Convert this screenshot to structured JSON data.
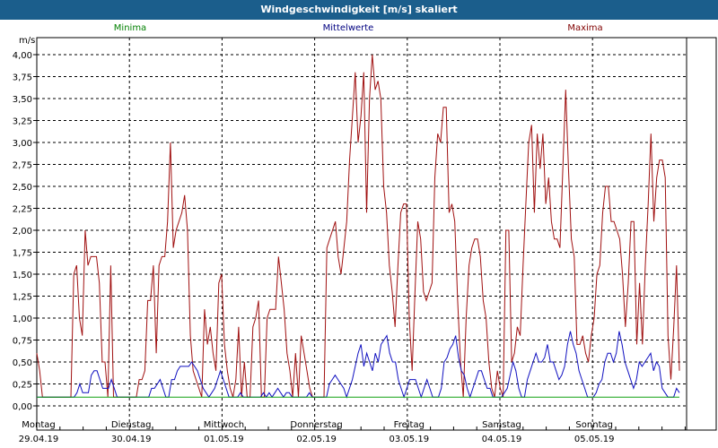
{
  "window": {
    "title": "Windgeschwindigkeit [m/s] skaliert"
  },
  "chart_data": {
    "type": "line",
    "unit_label": "m/s",
    "ylim": [
      0,
      4
    ],
    "y_ticks": [
      "0,00",
      "0,25",
      "0,50",
      "0,75",
      "1,00",
      "1,25",
      "1,50",
      "1,75",
      "2,00",
      "2,25",
      "2,50",
      "2,75",
      "3,00",
      "3,25",
      "3,50",
      "3,75",
      "4,00"
    ],
    "x_range": [
      "29.04.19 00:00",
      "05.05.19 24:00"
    ],
    "x_labels": [
      {
        "day": "Montag",
        "date": "29.04.19"
      },
      {
        "day": "Dienstag",
        "date": "30.04.19"
      },
      {
        "day": "Mittwoch",
        "date": "01.05.19"
      },
      {
        "day": "Donnerstag",
        "date": "02.05.19"
      },
      {
        "day": "Freitag",
        "date": "03.05.19"
      },
      {
        "day": "Samstag",
        "date": "04.05.19"
      },
      {
        "day": "Sonntag",
        "date": "05.05.19"
      }
    ],
    "grid": true,
    "legend": [
      {
        "name": "Minima",
        "color": "#008000"
      },
      {
        "name": "Mittelwerte",
        "color": "#000080"
      },
      {
        "name": "Maxima",
        "color": "#800000"
      }
    ],
    "series": [
      {
        "name": "Maxima",
        "color": "#a01010",
        "values": [
          0.6,
          0.4,
          0.1,
          0.1,
          0.1,
          0.1,
          0.1,
          0.1,
          0.1,
          0.1,
          0.1,
          0.1,
          0.1,
          1.5,
          1.6,
          1.0,
          0.8,
          2.0,
          1.6,
          1.7,
          1.7,
          1.7,
          1.4,
          0.5,
          0.5,
          0.1,
          1.6,
          0.1,
          0.1,
          0.1,
          0.1,
          0.1,
          0.1,
          0.1,
          0.1,
          0.1,
          0.3,
          0.3,
          0.4,
          1.2,
          1.2,
          1.6,
          0.6,
          1.6,
          1.7,
          1.7,
          2.1,
          3.0,
          1.8,
          2.0,
          2.1,
          2.2,
          2.4,
          2.0,
          0.8,
          0.4,
          0.3,
          0.2,
          0.1,
          1.1,
          0.7,
          0.9,
          0.6,
          0.4,
          1.4,
          1.5,
          0.7,
          0.4,
          0.2,
          0.1,
          0.3,
          0.9,
          0.1,
          0.5,
          0.1,
          0.1,
          0.9,
          1.0,
          1.2,
          0.1,
          0.1,
          1.0,
          1.1,
          1.1,
          1.1,
          1.7,
          1.4,
          1.1,
          0.6,
          0.4,
          0.1,
          0.6,
          0.1,
          0.8,
          0.6,
          0.4,
          0.2,
          0.1,
          0.1,
          0.1,
          0.1,
          0.1,
          1.8,
          1.9,
          2.0,
          2.1,
          1.7,
          1.5,
          1.8,
          2.1,
          2.8,
          3.3,
          3.8,
          3.0,
          3.3,
          3.8,
          2.2,
          3.5,
          4.0,
          3.6,
          3.7,
          3.5,
          2.5,
          2.2,
          1.6,
          1.3,
          0.9,
          1.6,
          2.2,
          2.3,
          2.3,
          1.0,
          0.4,
          1.3,
          2.1,
          1.9,
          1.3,
          1.2,
          1.3,
          1.4,
          2.6,
          3.1,
          3.0,
          3.4,
          3.4,
          2.2,
          2.3,
          2.1,
          1.2,
          0.5,
          0.1,
          1.0,
          1.6,
          1.8,
          1.9,
          1.9,
          1.7,
          1.2,
          1.0,
          0.5,
          0.2,
          0.1,
          0.4,
          0.2,
          0.1,
          2.0,
          2.0,
          0.5,
          0.6,
          0.9,
          0.8,
          1.6,
          2.3,
          3.0,
          3.2,
          2.2,
          3.1,
          2.7,
          3.1,
          2.3,
          2.6,
          2.1,
          1.9,
          1.9,
          1.8,
          2.7,
          3.6,
          2.7,
          1.9,
          1.7,
          0.7,
          0.7,
          0.8,
          0.6,
          0.5,
          0.8,
          1.0,
          1.5,
          1.6,
          2.2,
          2.5,
          2.5,
          2.1,
          2.1,
          2.0,
          1.9,
          1.5,
          0.9,
          1.4,
          2.1,
          2.1,
          0.7,
          1.4,
          0.7,
          1.6,
          2.3,
          3.1,
          2.1,
          2.6,
          2.8,
          2.8,
          2.6,
          0.8,
          0.3,
          0.9,
          1.6,
          0.4
        ]
      },
      {
        "name": "Mittelwerte",
        "color": "#1010c0",
        "values": [
          0.1,
          0.1,
          0.1,
          0.1,
          0.1,
          0.1,
          0.1,
          0.1,
          0.1,
          0.1,
          0.1,
          0.1,
          0.1,
          0.1,
          0.15,
          0.25,
          0.15,
          0.15,
          0.15,
          0.35,
          0.4,
          0.4,
          0.3,
          0.2,
          0.2,
          0.2,
          0.3,
          0.2,
          0.1,
          0.1,
          0.1,
          0.1,
          0.1,
          0.1,
          0.1,
          0.1,
          0.1,
          0.1,
          0.1,
          0.1,
          0.2,
          0.2,
          0.25,
          0.3,
          0.2,
          0.1,
          0.1,
          0.3,
          0.3,
          0.4,
          0.45,
          0.45,
          0.45,
          0.45,
          0.5,
          0.45,
          0.4,
          0.3,
          0.2,
          0.15,
          0.1,
          0.15,
          0.2,
          0.3,
          0.4,
          0.3,
          0.2,
          0.1,
          0.1,
          0.1,
          0.1,
          0.15,
          0.1,
          0.1,
          0.1,
          0.1,
          0.1,
          0.1,
          0.1,
          0.15,
          0.1,
          0.15,
          0.1,
          0.15,
          0.2,
          0.15,
          0.1,
          0.15,
          0.15,
          0.1,
          0.1,
          0.1,
          0.1,
          0.1,
          0.1,
          0.15,
          0.1,
          0.1,
          0.1,
          0.1,
          0.1,
          0.1,
          0.25,
          0.3,
          0.35,
          0.3,
          0.25,
          0.2,
          0.1,
          0.2,
          0.3,
          0.45,
          0.6,
          0.7,
          0.45,
          0.6,
          0.5,
          0.4,
          0.6,
          0.5,
          0.7,
          0.75,
          0.8,
          0.6,
          0.5,
          0.5,
          0.3,
          0.2,
          0.1,
          0.2,
          0.3,
          0.3,
          0.3,
          0.2,
          0.1,
          0.2,
          0.3,
          0.2,
          0.1,
          0.1,
          0.1,
          0.2,
          0.5,
          0.55,
          0.65,
          0.7,
          0.8,
          0.55,
          0.4,
          0.35,
          0.2,
          0.1,
          0.2,
          0.3,
          0.4,
          0.4,
          0.3,
          0.2,
          0.2,
          0.1,
          0.1,
          0.1,
          0.1,
          0.15,
          0.2,
          0.35,
          0.5,
          0.4,
          0.2,
          0.1,
          0.1,
          0.3,
          0.4,
          0.5,
          0.6,
          0.5,
          0.5,
          0.55,
          0.7,
          0.5,
          0.5,
          0.4,
          0.3,
          0.35,
          0.45,
          0.7,
          0.85,
          0.7,
          0.6,
          0.4,
          0.3,
          0.2,
          0.1,
          0.1,
          0.1,
          0.15,
          0.25,
          0.3,
          0.5,
          0.6,
          0.6,
          0.5,
          0.6,
          0.85,
          0.7,
          0.5,
          0.4,
          0.3,
          0.2,
          0.3,
          0.5,
          0.45,
          0.5,
          0.55,
          0.6,
          0.4,
          0.5,
          0.45,
          0.2,
          0.15,
          0.1,
          0.1,
          0.1,
          0.2,
          0.15
        ]
      },
      {
        "name": "Minima",
        "color": "#10a010",
        "values": [
          0.1,
          0.1
        ]
      }
    ]
  }
}
